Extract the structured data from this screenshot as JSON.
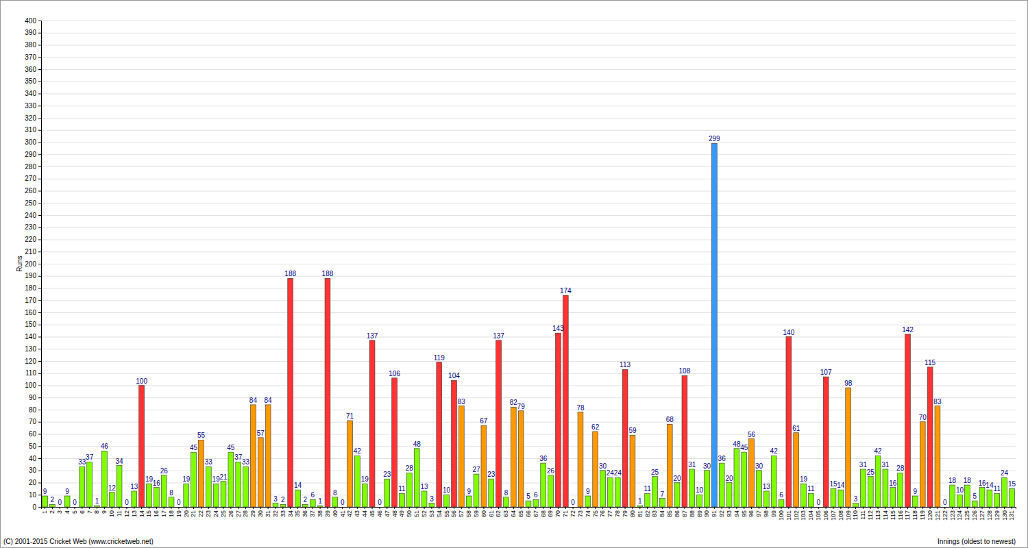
{
  "chart_data": {
    "type": "bar",
    "y_label": "Runs",
    "x_label": "Innings (oldest to newest)",
    "annotations": [
      "(C) 2001-2015 Cricket Web (www.cricketweb.net)"
    ],
    "categories": [
      "1",
      "2",
      "3",
      "4",
      "5",
      "6",
      "7",
      "8",
      "9",
      "10",
      "11",
      "12",
      "13",
      "14",
      "15",
      "16",
      "17",
      "18",
      "19",
      "20",
      "21",
      "22",
      "23",
      "24",
      "25",
      "26",
      "27",
      "28",
      "29",
      "30",
      "31",
      "32",
      "33",
      "34",
      "35",
      "36",
      "37",
      "38",
      "39",
      "40",
      "41",
      "42",
      "43",
      "44",
      "45",
      "46",
      "47",
      "48",
      "49",
      "50",
      "51",
      "52",
      "53",
      "54",
      "55",
      "56",
      "57",
      "58",
      "59",
      "60",
      "61",
      "62",
      "63",
      "64",
      "65",
      "66",
      "67",
      "68",
      "69",
      "70",
      "71",
      "72",
      "73",
      "74",
      "75",
      "76",
      "77",
      "78",
      "79",
      "80",
      "81",
      "82",
      "83",
      "84",
      "85",
      "86",
      "87",
      "88",
      "89",
      "90",
      "91",
      "92",
      "93",
      "94",
      "95",
      "96",
      "97",
      "98",
      "99",
      "100",
      "101",
      "102",
      "103",
      "104",
      "105",
      "106",
      "107",
      "108",
      "109",
      "110",
      "111",
      "112",
      "113",
      "114",
      "115",
      "116",
      "117",
      "118",
      "119",
      "120",
      "121",
      "122",
      "123",
      "124",
      "125",
      "126",
      "127",
      "128",
      "129",
      "130",
      "131"
    ],
    "values": [
      9,
      2,
      0,
      9,
      0,
      33,
      37,
      1,
      46,
      12,
      34,
      0,
      13,
      100,
      19,
      16,
      26,
      8,
      0,
      19,
      45,
      55,
      33,
      19,
      21,
      45,
      37,
      33,
      84,
      57,
      84,
      3,
      2,
      188,
      14,
      2,
      6,
      1,
      188,
      8,
      0,
      71,
      42,
      19,
      137,
      0,
      23,
      106,
      11,
      28,
      48,
      13,
      3,
      119,
      10,
      104,
      83,
      9,
      27,
      67,
      23,
      137,
      8,
      82,
      79,
      5,
      6,
      36,
      26,
      143,
      174,
      0,
      78,
      9,
      62,
      30,
      24,
      24,
      113,
      59,
      1,
      11,
      25,
      7,
      68,
      20,
      108,
      31,
      10,
      30,
      299,
      36,
      20,
      48,
      45,
      56,
      30,
      13,
      42,
      6,
      140,
      61,
      19,
      11,
      0,
      107,
      15,
      14,
      98,
      3,
      31,
      25,
      42,
      31,
      16,
      28,
      142,
      9,
      70,
      115,
      83,
      0,
      18,
      10,
      18,
      5,
      16,
      14,
      11,
      24,
      15
    ],
    "colors": [
      "#80ff00",
      "#80ff00",
      "#80ff00",
      "#80ff00",
      "#80ff00",
      "#80ff00",
      "#80ff00",
      "#80ff00",
      "#80ff00",
      "#80ff00",
      "#80ff00",
      "#80ff00",
      "#80ff00",
      "#ff3333",
      "#80ff00",
      "#80ff00",
      "#80ff00",
      "#80ff00",
      "#80ff00",
      "#80ff00",
      "#80ff00",
      "#ff9900",
      "#80ff00",
      "#80ff00",
      "#80ff00",
      "#80ff00",
      "#80ff00",
      "#80ff00",
      "#ff9900",
      "#ff9900",
      "#ff9900",
      "#80ff00",
      "#80ff00",
      "#ff3333",
      "#80ff00",
      "#80ff00",
      "#80ff00",
      "#80ff00",
      "#ff3333",
      "#80ff00",
      "#80ff00",
      "#ff9900",
      "#80ff00",
      "#80ff00",
      "#ff3333",
      "#80ff00",
      "#80ff00",
      "#ff3333",
      "#80ff00",
      "#80ff00",
      "#80ff00",
      "#80ff00",
      "#80ff00",
      "#ff3333",
      "#80ff00",
      "#ff3333",
      "#ff9900",
      "#80ff00",
      "#80ff00",
      "#ff9900",
      "#80ff00",
      "#ff3333",
      "#80ff00",
      "#ff9900",
      "#ff9900",
      "#80ff00",
      "#80ff00",
      "#80ff00",
      "#80ff00",
      "#ff3333",
      "#ff3333",
      "#80ff00",
      "#ff9900",
      "#80ff00",
      "#ff9900",
      "#80ff00",
      "#80ff00",
      "#80ff00",
      "#ff3333",
      "#ff9900",
      "#80ff00",
      "#80ff00",
      "#80ff00",
      "#80ff00",
      "#ff9900",
      "#80ff00",
      "#ff3333",
      "#80ff00",
      "#80ff00",
      "#80ff00",
      "#3399ff",
      "#80ff00",
      "#80ff00",
      "#80ff00",
      "#80ff00",
      "#ff9900",
      "#80ff00",
      "#80ff00",
      "#80ff00",
      "#80ff00",
      "#ff3333",
      "#ff9900",
      "#80ff00",
      "#80ff00",
      "#80ff00",
      "#ff3333",
      "#80ff00",
      "#80ff00",
      "#ff9900",
      "#80ff00",
      "#80ff00",
      "#80ff00",
      "#80ff00",
      "#80ff00",
      "#80ff00",
      "#80ff00",
      "#ff3333",
      "#80ff00",
      "#ff9900",
      "#ff3333",
      "#ff9900",
      "#80ff00",
      "#80ff00",
      "#80ff00",
      "#80ff00",
      "#80ff00",
      "#80ff00",
      "#80ff00",
      "#80ff00",
      "#80ff00",
      "#80ff00"
    ],
    "ylim": [
      0,
      400
    ],
    "yticks": [
      0,
      10,
      20,
      30,
      40,
      50,
      60,
      70,
      80,
      90,
      100,
      110,
      120,
      130,
      140,
      150,
      160,
      170,
      180,
      190,
      200,
      210,
      220,
      230,
      240,
      250,
      260,
      270,
      280,
      290,
      300,
      310,
      320,
      330,
      340,
      350,
      360,
      370,
      380,
      390,
      400
    ],
    "grid": true,
    "data_labels": true
  }
}
